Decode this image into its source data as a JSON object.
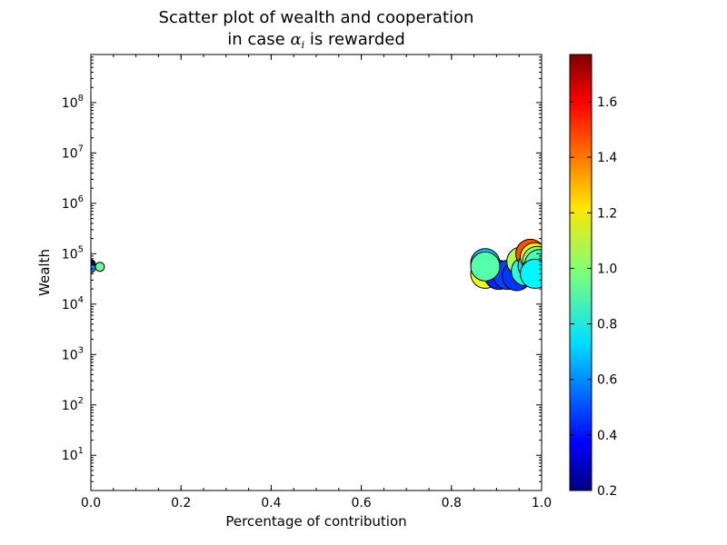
{
  "chart_data": {
    "type": "scatter",
    "title_line1": "Scatter plot of wealth and cooperation",
    "title_line2_prefix": "in case ",
    "title_symbol": "α",
    "title_symbol_sub": "i",
    "title_line2_suffix": " is rewarded",
    "xlabel": "Percentage of contribution",
    "ylabel": "Wealth",
    "xlim": [
      0.0,
      1.0
    ],
    "ylim": [
      2,
      900000000
    ],
    "yscale": "log",
    "x_ticks": [
      0.0,
      0.2,
      0.4,
      0.6,
      0.8,
      1.0
    ],
    "x_tick_labels": [
      "0.0",
      "0.2",
      "0.4",
      "0.6",
      "0.8",
      "1.0"
    ],
    "y_tick_exponents": [
      1,
      2,
      3,
      4,
      5,
      6,
      7,
      8
    ],
    "y_tick_base": "10",
    "colorbar": {
      "colormap": "jet",
      "range": [
        0.2,
        1.77
      ],
      "ticks": [
        0.2,
        0.4,
        0.6,
        0.8,
        1.0,
        1.2,
        1.4,
        1.6
      ],
      "tick_labels": [
        "0.2",
        "0.4",
        "0.6",
        "0.8",
        "1.0",
        "1.2",
        "1.4",
        "1.6"
      ]
    },
    "points": [
      {
        "x": 0.0,
        "y": 62000,
        "c": 0.25,
        "s": 0.4
      },
      {
        "x": 0.0,
        "y": 52000,
        "c": 0.62,
        "s": 0.4
      },
      {
        "x": 0.02,
        "y": 55000,
        "c": 0.95,
        "s": 0.4
      },
      {
        "x": 0.875,
        "y": 40000,
        "c": 1.15,
        "s": 1.0
      },
      {
        "x": 0.875,
        "y": 65000,
        "c": 0.7,
        "s": 1.0
      },
      {
        "x": 0.905,
        "y": 38000,
        "c": 0.45,
        "s": 1.0
      },
      {
        "x": 0.925,
        "y": 38000,
        "c": 0.5,
        "s": 1.0
      },
      {
        "x": 0.945,
        "y": 36000,
        "c": 0.48,
        "s": 1.0
      },
      {
        "x": 0.955,
        "y": 70000,
        "c": 1.05,
        "s": 1.0
      },
      {
        "x": 0.965,
        "y": 45000,
        "c": 0.85,
        "s": 1.0
      },
      {
        "x": 0.975,
        "y": 100000,
        "c": 1.45,
        "s": 1.0
      },
      {
        "x": 0.98,
        "y": 58000,
        "c": 0.75,
        "s": 1.0
      },
      {
        "x": 0.985,
        "y": 85000,
        "c": 1.2,
        "s": 1.0
      },
      {
        "x": 0.99,
        "y": 72000,
        "c": 0.98,
        "s": 1.0
      },
      {
        "x": 0.99,
        "y": 48000,
        "c": 1.1,
        "s": 1.0
      },
      {
        "x": 0.995,
        "y": 62000,
        "c": 0.9,
        "s": 1.0
      },
      {
        "x": 0.875,
        "y": 56000,
        "c": 0.92,
        "s": 1.0
      },
      {
        "x": 0.985,
        "y": 40000,
        "c": 0.78,
        "s": 1.0
      }
    ]
  }
}
